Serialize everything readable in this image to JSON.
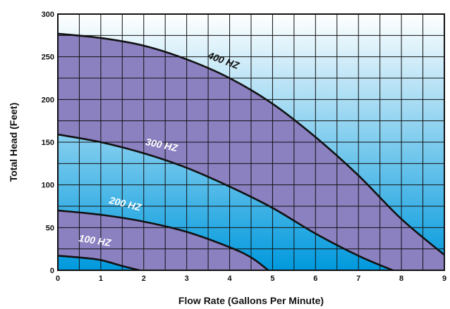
{
  "colors": {
    "band": "#8b80c0",
    "gradient_top": "#ffffff",
    "gradient_bottom": "#0099dd",
    "grid": "#111111",
    "curve": "#111111",
    "label_dark": "#111111",
    "label_light": "#ffffff"
  },
  "chart_data": {
    "type": "line",
    "title": "",
    "xlabel": "Flow Rate (Gallons Per Minute)",
    "ylabel": "Total Head (Feet)",
    "xlim": [
      0,
      9
    ],
    "ylim": [
      0,
      300
    ],
    "x_ticks": [
      "0",
      "1",
      "2",
      "3",
      "4",
      "5",
      "6",
      "7",
      "8",
      "9"
    ],
    "y_ticks": [
      "0",
      "50",
      "100",
      "150",
      "200",
      "250",
      "300"
    ],
    "grid": true,
    "minor_grid": {
      "x_step": 0.5,
      "y_step": 25
    },
    "shaded_bands": [
      {
        "between": [
          "400 HZ",
          "300 HZ"
        ]
      },
      {
        "between": [
          "200 HZ",
          "100 HZ"
        ]
      }
    ],
    "series": [
      {
        "name": "400 HZ",
        "label_color": "dark",
        "points": [
          [
            0,
            277
          ],
          [
            1,
            272
          ],
          [
            2,
            263
          ],
          [
            3,
            247
          ],
          [
            4,
            225
          ],
          [
            5,
            195
          ],
          [
            6,
            156
          ],
          [
            7,
            111
          ],
          [
            8,
            60
          ],
          [
            9,
            18
          ]
        ]
      },
      {
        "name": "300 HZ",
        "label_color": "light",
        "points": [
          [
            0,
            159
          ],
          [
            1,
            150
          ],
          [
            2,
            137
          ],
          [
            3,
            120
          ],
          [
            4,
            98
          ],
          [
            5,
            73
          ],
          [
            6,
            43
          ],
          [
            7,
            17
          ],
          [
            7.8,
            0
          ]
        ]
      },
      {
        "name": "200 HZ",
        "label_color": "light",
        "points": [
          [
            0,
            70
          ],
          [
            1,
            65
          ],
          [
            2,
            57
          ],
          [
            3,
            45
          ],
          [
            4,
            27
          ],
          [
            4.5,
            15
          ],
          [
            4.9,
            0
          ]
        ]
      },
      {
        "name": "100 HZ",
        "label_color": "light",
        "points": [
          [
            0,
            17
          ],
          [
            0.5,
            15
          ],
          [
            1,
            12
          ],
          [
            1.5,
            5
          ],
          [
            1.9,
            0
          ]
        ]
      }
    ]
  }
}
